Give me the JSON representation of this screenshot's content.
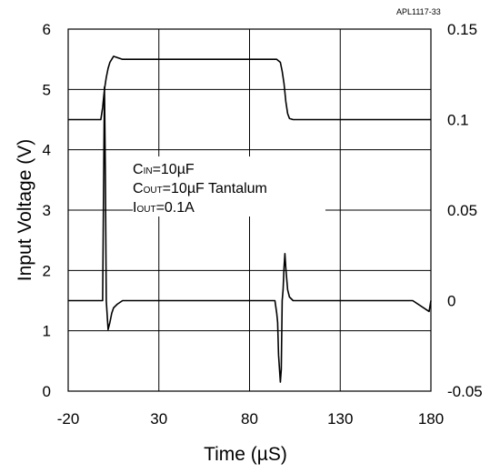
{
  "chart_data": {
    "type": "line",
    "figure_id": "APL1117-33",
    "xlabel": "Time (µS)",
    "ylabel": "Input Voltage (V)",
    "xlim": [
      -20,
      180
    ],
    "ylim": [
      0,
      6
    ],
    "y2lim": [
      -0.05,
      0.15
    ],
    "x_ticks": [
      -20,
      30,
      80,
      130,
      180
    ],
    "x_tick_labels": [
      "-20",
      "30",
      "80",
      "130",
      "180"
    ],
    "y_ticks": [
      0,
      1,
      2,
      3,
      4,
      5,
      6
    ],
    "y_tick_labels": [
      "0",
      "1",
      "2",
      "3",
      "4",
      "5",
      "6"
    ],
    "y2_ticks": [
      -0.05,
      0,
      0.05,
      0.1,
      0.15
    ],
    "y2_tick_labels": [
      "-0.05",
      "0",
      "0.05",
      "0.1",
      "0.15"
    ],
    "grid": true,
    "annotations": [
      {
        "main": "C",
        "sub": "IN",
        "rest": "=10µF"
      },
      {
        "main": "C",
        "sub": "OUT",
        "rest": "=10µF Tantalum"
      },
      {
        "main": "I",
        "sub": "OUT",
        "rest": "=0.1A"
      }
    ],
    "series": [
      {
        "axis": "left",
        "color": "#000000",
        "x": [
          -20,
          -2,
          -1,
          0,
          1,
          2,
          3,
          5,
          10,
          20,
          40,
          60,
          80,
          95,
          97,
          98,
          99,
          100,
          101,
          102,
          104,
          110,
          130,
          150,
          170,
          180
        ],
        "y": [
          4.5,
          4.5,
          4.7,
          5.0,
          5.2,
          5.35,
          5.45,
          5.55,
          5.5,
          5.5,
          5.5,
          5.5,
          5.5,
          5.5,
          5.45,
          5.3,
          5.1,
          4.8,
          4.6,
          4.52,
          4.5,
          4.5,
          4.5,
          4.5,
          4.5,
          4.5
        ]
      },
      {
        "axis": "right",
        "color": "#000000",
        "x": [
          -20,
          -15,
          -10,
          -5,
          -2,
          -1,
          -0.5,
          0,
          0.5,
          1,
          1.5,
          2,
          3,
          4,
          5,
          7,
          10,
          20,
          40,
          60,
          80,
          94,
          95,
          95.5,
          96,
          97,
          97.5,
          98,
          98.5,
          99,
          99.5,
          100,
          101,
          102,
          104,
          110,
          130,
          150,
          170,
          179,
          180
        ],
        "y": [
          0.0,
          0.0,
          0.0,
          0.0,
          0.0,
          0.0,
          0.06,
          0.118,
          0.07,
          0.0,
          -0.008,
          -0.016,
          -0.012,
          -0.007,
          -0.004,
          -0.002,
          0.0,
          0.0,
          0.0,
          0.0,
          0.0,
          0.0,
          -0.007,
          -0.012,
          -0.03,
          -0.045,
          -0.038,
          0.0,
          0.006,
          0.018,
          0.026,
          0.018,
          0.006,
          0.002,
          0.0,
          0.0,
          0.0,
          0.0,
          0.0,
          -0.006,
          0.0
        ]
      }
    ]
  }
}
